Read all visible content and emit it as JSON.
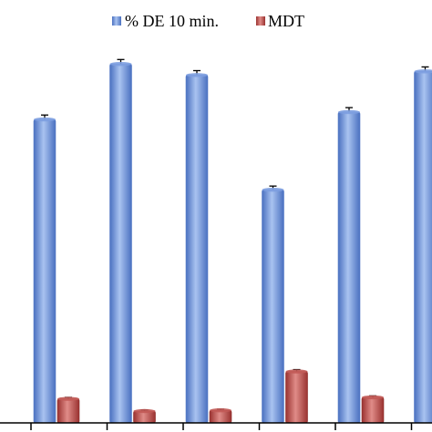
{
  "chart_data": {
    "type": "bar",
    "categories": [
      "",
      "",
      "",
      "",
      "",
      ""
    ],
    "series": [
      {
        "name": "% DE 10 min.",
        "color": "#6f93d6",
        "values": [
          82,
          97,
          94,
          63,
          84,
          95
        ],
        "errors": [
          1.2,
          1.2,
          1.2,
          1.0,
          1.2,
          1.2
        ]
      },
      {
        "name": "MDT",
        "color": "#b84a48",
        "values": [
          6.5,
          3.2,
          3.4,
          13.9,
          6.9,
          null
        ],
        "errors": [
          0.4,
          0.3,
          0.3,
          0.5,
          0.4,
          null
        ]
      }
    ],
    "ylim": [
      0,
      100
    ],
    "legend_position": "top-center",
    "grid": false
  }
}
